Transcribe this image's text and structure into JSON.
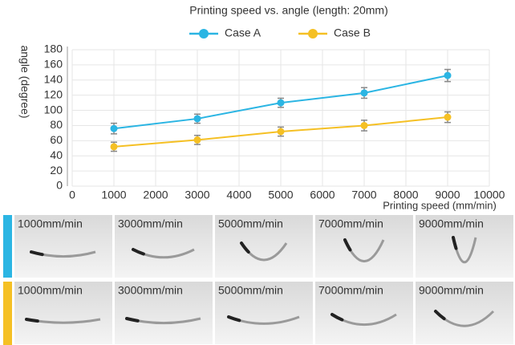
{
  "chart_data": {
    "type": "line",
    "title": "Printing speed vs. angle (length: 20mm)",
    "x_label": "Printing speed (mm/min)",
    "y_label": "angle (degree)",
    "x": [
      1000,
      3000,
      5000,
      7000,
      9000
    ],
    "series": [
      {
        "name": "Case A",
        "color": "#2bb5e3",
        "values": [
          76,
          89,
          110,
          123,
          146
        ],
        "errors": [
          7,
          6,
          6,
          7,
          8
        ]
      },
      {
        "name": "Case B",
        "color": "#f5c024",
        "values": [
          52,
          61,
          72,
          80,
          91
        ],
        "errors": [
          6,
          6,
          6,
          7,
          7
        ]
      }
    ],
    "xlim": [
      0,
      10000
    ],
    "xticks": [
      0,
      1000,
      2000,
      3000,
      4000,
      5000,
      6000,
      7000,
      8000,
      9000,
      10000
    ],
    "ylim": [
      0,
      180
    ],
    "yticks": [
      0,
      20,
      40,
      60,
      80,
      100,
      120,
      140,
      160,
      180
    ],
    "grid": true,
    "legend": "top"
  },
  "panels": {
    "rows": [
      {
        "labels": [
          "1000mm/min",
          "3000mm/min",
          "5000mm/min",
          "7000mm/min",
          "9000mm/min"
        ]
      },
      {
        "labels": [
          "1000mm/min",
          "3000mm/min",
          "5000mm/min",
          "7000mm/min",
          "9000mm/min"
        ]
      }
    ]
  }
}
